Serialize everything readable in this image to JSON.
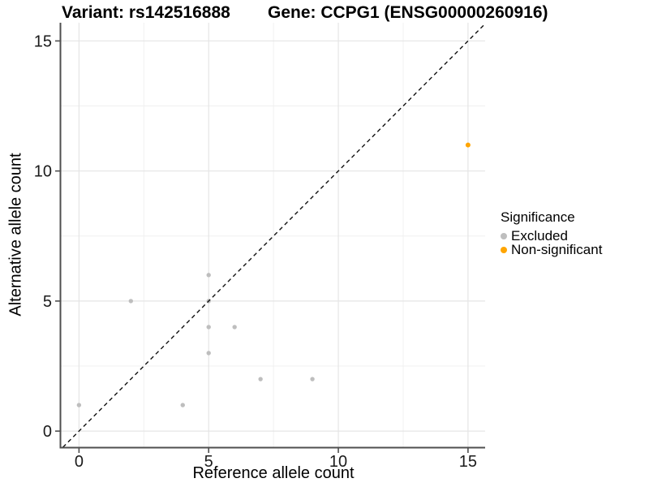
{
  "title": {
    "variant": "Variant: rs142516888",
    "gene": "Gene: CCPG1 (ENSG00000260916)"
  },
  "legend": {
    "title": "Significance",
    "items": [
      {
        "label": "Excluded",
        "color": "#bebebe"
      },
      {
        "label": "Non-significant",
        "color": "#FFA500"
      }
    ]
  },
  "chart_data": {
    "type": "scatter",
    "title": "Variant: rs142516888   Gene: CCPG1 (ENSG00000260916)",
    "xlabel": "Reference allele count",
    "ylabel": "Alternative allele count",
    "xlim": [
      -0.7,
      15.66
    ],
    "ylim": [
      -0.62,
      15.7
    ],
    "xticks": [
      0,
      5,
      10,
      15
    ],
    "yticks": [
      0,
      5,
      10,
      15
    ],
    "xticks_minor": [
      2.5,
      7.5,
      12.5
    ],
    "yticks_minor": [
      2.5,
      7.5,
      12.5
    ],
    "grid": true,
    "legend_position": "right",
    "identity_line": {
      "style": "dashed",
      "slope": 1,
      "intercept": 0,
      "color": "#111111"
    },
    "series": [
      {
        "name": "Excluded",
        "color": "#bebebe",
        "marker_radius": 2.7,
        "points": [
          [
            0,
            1
          ],
          [
            2,
            5
          ],
          [
            4,
            1
          ],
          [
            5,
            3
          ],
          [
            5,
            4
          ],
          [
            5,
            5
          ],
          [
            5,
            6
          ],
          [
            6,
            4
          ],
          [
            7,
            2
          ],
          [
            9,
            2
          ]
        ]
      },
      {
        "name": "Non-significant",
        "color": "#FFA500",
        "marker_radius": 3.0,
        "points": [
          [
            15,
            11
          ]
        ]
      }
    ]
  },
  "colors": {
    "axis_line": "#4f4f4f",
    "grid_major": "#e5e5e5",
    "grid_minor": "#f0f0f0",
    "tick_text": "#1b1b1b"
  }
}
